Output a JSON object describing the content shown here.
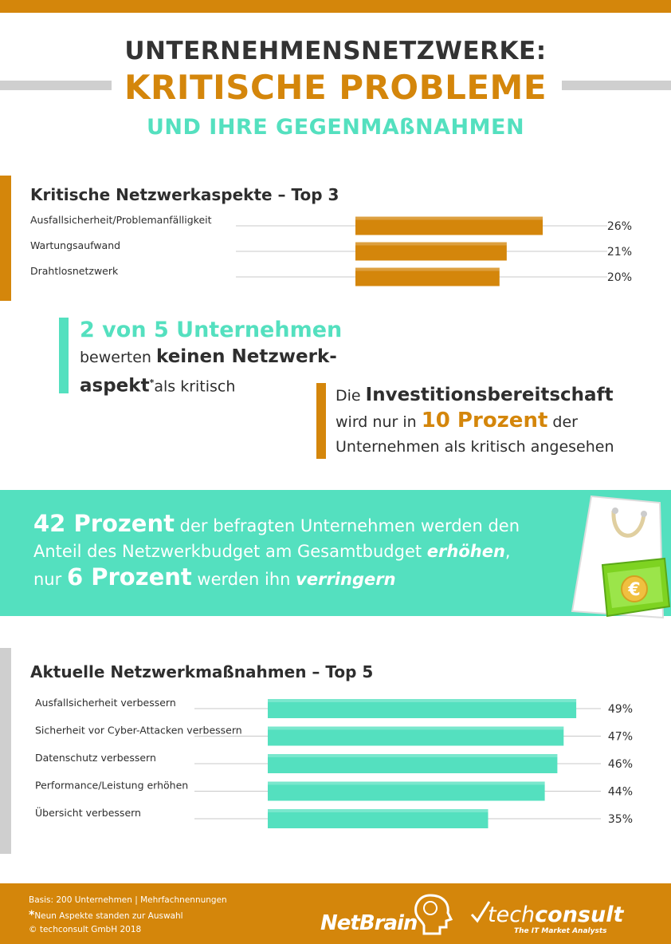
{
  "header": {
    "line1": "UNTERNEHMENSNETZWERKE:",
    "line2": "KRITISCHE PROBLEME",
    "line3": "UND IHRE GEGENMAßNAHMEN"
  },
  "colors": {
    "accent_orange": "#d4860b",
    "accent_teal": "#54e0bf",
    "grey": "#cfcfcf",
    "text": "#2e2e2e"
  },
  "chart_data": [
    {
      "type": "bar",
      "orientation": "horizontal",
      "title": "Kritische Netzwerkaspekte – Top 3",
      "categories": [
        "Ausfallsicherheit/Problemanfälligkeit",
        "Wartungsaufwand",
        "Drahtlosnetzwerk"
      ],
      "values": [
        26,
        21,
        20
      ],
      "value_labels": [
        "26%",
        "21%",
        "20%"
      ],
      "color": "#d4860b"
    },
    {
      "type": "bar",
      "orientation": "horizontal",
      "title": "Aktuelle Netzwerkmaßnahmen – Top 5",
      "categories": [
        "Ausfallsicherheit verbessern",
        "Sicherheit vor Cyber-Attacken verbessern",
        "Datenschutz verbessern",
        "Performance/Leistung erhöhen",
        "Übersicht verbessern"
      ],
      "values": [
        49,
        47,
        46,
        44,
        35
      ],
      "value_labels": [
        "49%",
        "47%",
        "46%",
        "44%",
        "35%"
      ],
      "color": "#54e0bf"
    }
  ],
  "callout1": {
    "big": "2 von 5 Unternehmen",
    "t1": "bewerten ",
    "b1": "keinen Netzwerk-",
    "b2": "aspekt",
    "star": "*",
    "t2": "als kritisch"
  },
  "callout2": {
    "t1": "Die ",
    "b1": "Investitionsbereitschaft",
    "t2": "wird nur in ",
    "acc": "10 Prozent",
    "t3": " der",
    "t4": "Unternehmen als kritisch angesehen"
  },
  "banner": {
    "b1": "42 Prozent",
    "t1": " der befragten Unternehmen werden den",
    "t2": "Anteil des Netzwerkbudget am Gesamtbudget ",
    "i1": "erhöhen",
    "t3": ",",
    "t4": "nur ",
    "b2": "6 Prozent",
    "t5": " werden ihn ",
    "i2": "verringern",
    "money_symbol": "€"
  },
  "footer": {
    "line1": "Basis: 200 Unternehmen | Mehrfachnennungen",
    "star": "*",
    "line2": "Neun Aspekte standen zur Auswahl",
    "line3": "© techconsult GmbH 2018",
    "netbrain": "NetBrain",
    "tc_name_1": "tech",
    "tc_name_2": "consult",
    "tc_tag": "The IT Market Analysts"
  }
}
